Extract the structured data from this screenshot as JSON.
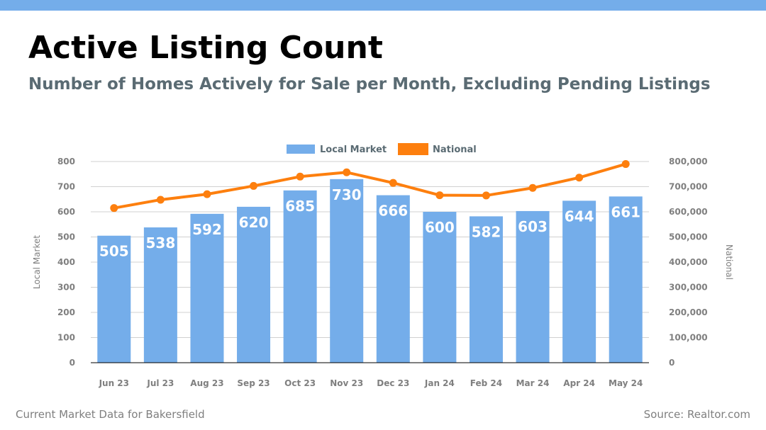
{
  "header": {
    "title": "Active Listing Count",
    "subtitle": "Number of Homes Actively for Sale per Month, Excluding Pending Listings"
  },
  "footer": {
    "left": "Current Market Data for Bakersfield",
    "right": "Source: Realtor.com"
  },
  "colors": {
    "top_bar": "#74adea",
    "bars": "#74adea",
    "line": "#fd7f0e",
    "title": "#000000",
    "subtitle": "#5a6b73"
  },
  "chart_data": {
    "type": "bar",
    "categories": [
      "Jun 23",
      "Jul 23",
      "Aug 23",
      "Sep 23",
      "Oct 23",
      "Nov 23",
      "Dec 23",
      "Jan 24",
      "Feb 24",
      "Mar 24",
      "Apr 24",
      "May 24"
    ],
    "series": [
      {
        "name": "Local Market",
        "type": "bar",
        "axis": "left",
        "values": [
          505,
          538,
          592,
          620,
          685,
          730,
          666,
          600,
          582,
          603,
          644,
          661
        ],
        "data_labels": [
          "505",
          "538",
          "592",
          "620",
          "685",
          "730",
          "666",
          "600",
          "582",
          "603",
          "644",
          "661"
        ]
      },
      {
        "name": "National",
        "type": "line",
        "axis": "right",
        "values": [
          615000,
          648000,
          670000,
          703000,
          740000,
          757000,
          715000,
          666000,
          665000,
          695000,
          736000,
          790000
        ]
      }
    ],
    "ylabel": "Local Market",
    "y2label": "National",
    "ylim": [
      0,
      800
    ],
    "y2lim": [
      0,
      800000
    ],
    "yticks": [
      "0",
      "100",
      "200",
      "300",
      "400",
      "500",
      "600",
      "700",
      "800"
    ],
    "y2ticks": [
      "0",
      "100,000",
      "200,000",
      "300,000",
      "400,000",
      "500,000",
      "600,000",
      "700,000",
      "800,000"
    ],
    "grid": true,
    "legend": "top-center"
  }
}
